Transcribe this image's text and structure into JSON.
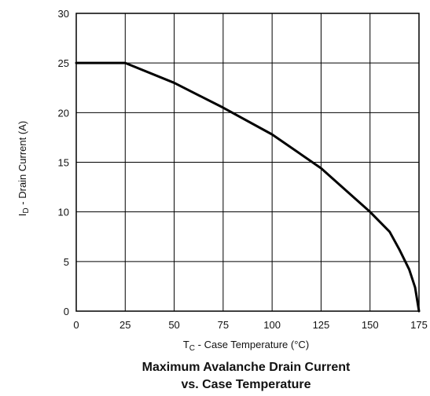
{
  "chart_data": {
    "type": "line",
    "title_line1": "Maximum Avalanche Drain Current",
    "title_line2": "vs. Case Temperature",
    "xlabel": {
      "main": "T",
      "sub": "C",
      "rest": " -  Case Temperature (°C)"
    },
    "ylabel": {
      "main": "I",
      "sub": "D",
      "rest": " - Drain Current (A)"
    },
    "xlim": [
      0,
      175
    ],
    "ylim": [
      0,
      30
    ],
    "xticks": [
      0,
      25,
      50,
      75,
      100,
      125,
      150,
      175
    ],
    "yticks": [
      0,
      5,
      10,
      15,
      20,
      25,
      30
    ],
    "grid": true,
    "line_color": "#000000",
    "series": [
      {
        "x": [
          0,
          25,
          50,
          75,
          100,
          125,
          150,
          160,
          165,
          170,
          173,
          175
        ],
        "y": [
          25,
          25,
          23,
          20.5,
          17.8,
          14.4,
          10,
          8,
          6.2,
          4.2,
          2.4,
          0
        ]
      }
    ]
  }
}
